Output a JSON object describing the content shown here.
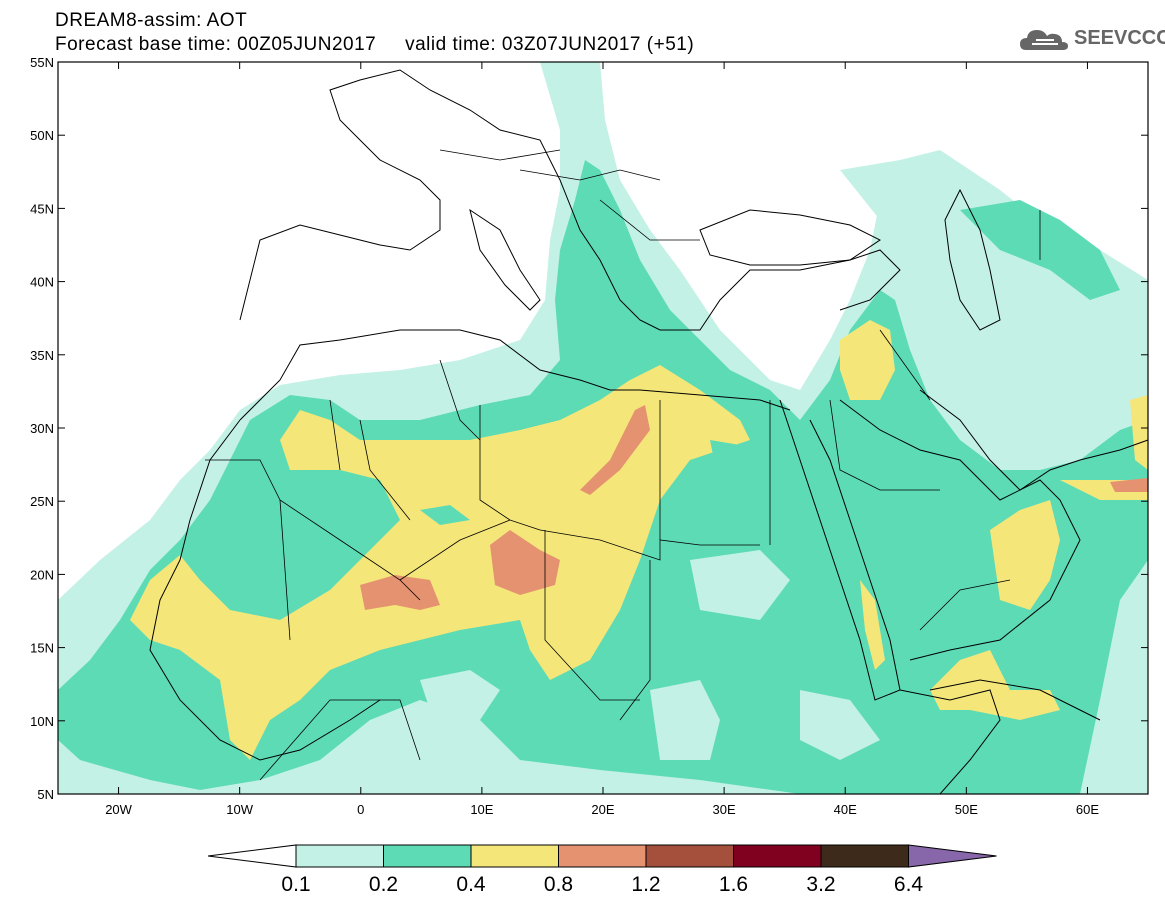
{
  "header": {
    "title_line1": "DREAM8-assim: AOT",
    "title_line2": "Forecast base time: 00Z05JUN2017     valid time: 03Z07JUN2017 (+51)"
  },
  "logo": {
    "text": "SEEVCCC",
    "icon": "cloud-icon",
    "color": "#666666"
  },
  "map": {
    "lon_range": [
      -25,
      65
    ],
    "lat_range": [
      5,
      55
    ],
    "lat_ticks": [
      {
        "value": 55,
        "label": "55N"
      },
      {
        "value": 50,
        "label": "50N"
      },
      {
        "value": 45,
        "label": "45N"
      },
      {
        "value": 40,
        "label": "40N"
      },
      {
        "value": 35,
        "label": "35N"
      },
      {
        "value": 30,
        "label": "30N"
      },
      {
        "value": 25,
        "label": "25N"
      },
      {
        "value": 20,
        "label": "20N"
      },
      {
        "value": 15,
        "label": "15N"
      },
      {
        "value": 10,
        "label": "10N"
      },
      {
        "value": 5,
        "label": "5N"
      }
    ],
    "lon_ticks": [
      {
        "value": -20,
        "label": "20W"
      },
      {
        "value": -10,
        "label": "10W"
      },
      {
        "value": 0,
        "label": "0"
      },
      {
        "value": 10,
        "label": "10E"
      },
      {
        "value": 20,
        "label": "20E"
      },
      {
        "value": 30,
        "label": "30E"
      },
      {
        "value": 40,
        "label": "40E"
      },
      {
        "value": 50,
        "label": "50E"
      },
      {
        "value": 60,
        "label": "60E"
      }
    ]
  },
  "colorbar": {
    "labels": [
      "0.1",
      "0.2",
      "0.4",
      "0.8",
      "1.2",
      "1.6",
      "3.2",
      "6.4"
    ],
    "colors": [
      "#ffffff",
      "#c4f1e6",
      "#5ddbb4",
      "#f5e67a",
      "#e59270",
      "#a5503d",
      "#800020",
      "#3d2a1a",
      "#8866aa"
    ]
  }
}
